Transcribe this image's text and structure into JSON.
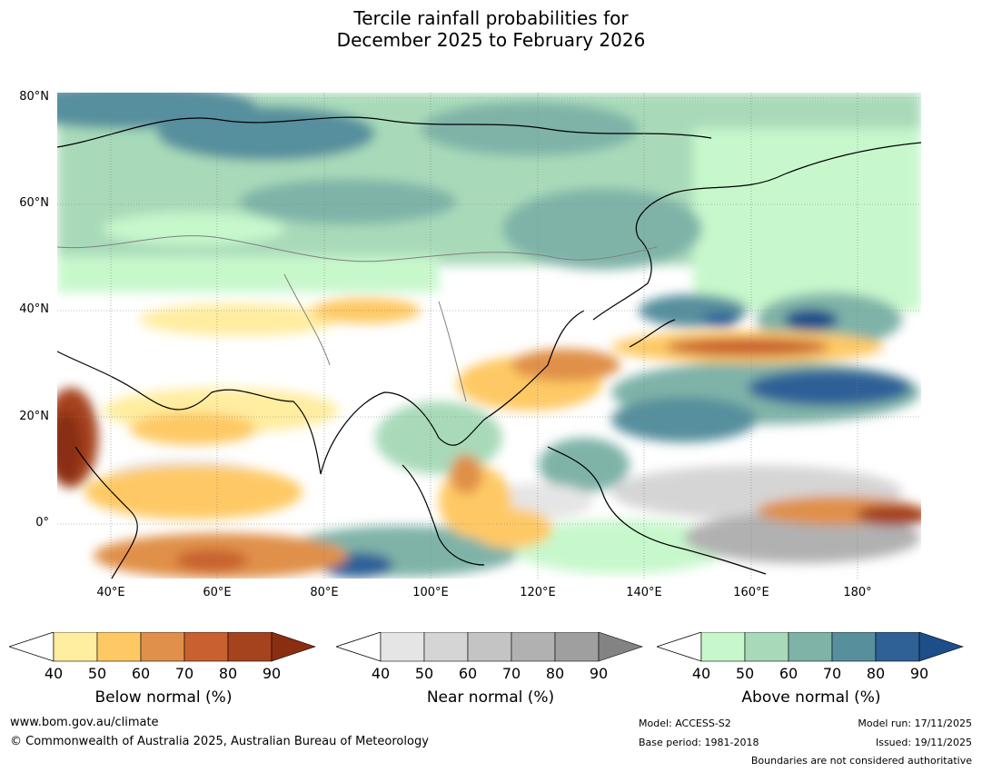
{
  "title": {
    "line1": "Tercile rainfall probabilities for",
    "line2": "December 2025 to February 2026"
  },
  "map": {
    "latitude_labels": [
      "80°N",
      "60°N",
      "40°N",
      "20°N",
      "0°"
    ],
    "longitude_labels": [
      "40°E",
      "60°E",
      "80°E",
      "100°E",
      "120°E",
      "140°E",
      "160°E",
      "180°"
    ]
  },
  "legend": {
    "below": {
      "title": "Below normal (%)",
      "ticks": [
        "40",
        "50",
        "60",
        "70",
        "80",
        "90"
      ],
      "colors": [
        "#ffeda0",
        "#fec965",
        "#e0904a",
        "#c8602f",
        "#a6431f",
        "#8a2e12"
      ]
    },
    "near": {
      "title": "Near normal (%)",
      "ticks": [
        "40",
        "50",
        "60",
        "70",
        "80",
        "90"
      ],
      "colors": [
        "#e5e5e5",
        "#d5d5d5",
        "#c4c4c4",
        "#b1b1b1",
        "#9f9f9f",
        "#838383"
      ]
    },
    "above": {
      "title": "Above normal (%)",
      "ticks": [
        "40",
        "50",
        "60",
        "70",
        "80",
        "90"
      ],
      "colors": [
        "#c7f8cc",
        "#a8dab9",
        "#7fb3a8",
        "#578f9d",
        "#2f6197",
        "#1d4e89"
      ]
    }
  },
  "footer": {
    "website": "www.bom.gov.au/climate",
    "copyright": "© Commonwealth of Australia 2025, Australian Bureau of Meteorology",
    "model": "Model: ACCESS-S2",
    "base_period": "Base period: 1981-2018",
    "model_run": "Model run: 17/11/2025",
    "issued": "Issued: 19/11/2025",
    "boundaries": "Boundaries are not considered authoritative"
  }
}
